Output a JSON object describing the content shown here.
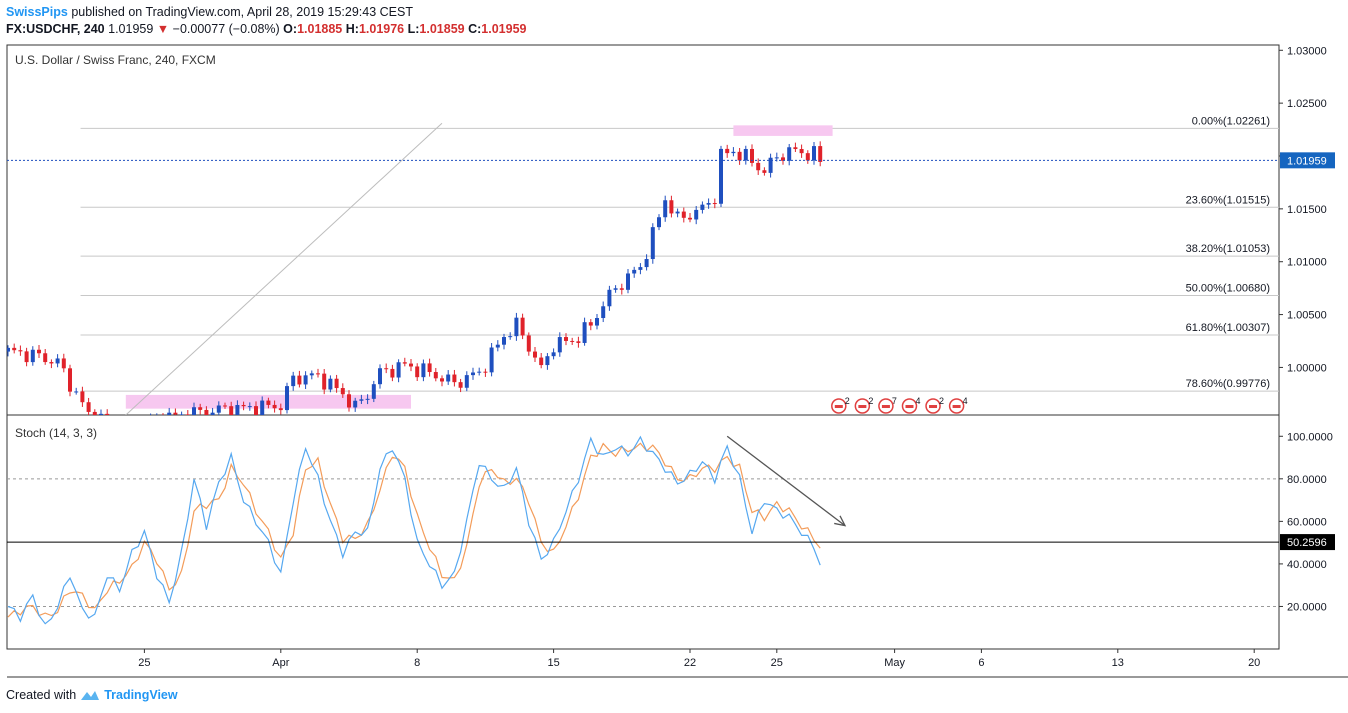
{
  "header": {
    "author": "SwissPips",
    "published_text": "published on TradingView.com, April 28, 2019 15:29:43 CEST",
    "symbol": "FX:USDCHF, 240",
    "last": "1.01959",
    "change": "−0.00077 (−0.08%)",
    "o_label": "O:",
    "o_value": "1.01885",
    "h_label": "H:",
    "h_value": "1.01976",
    "l_label": "L:",
    "l_value": "1.01859",
    "c_label": "C:",
    "c_value": "1.01959"
  },
  "footer": {
    "created_with": "Created with",
    "brand": "TradingView"
  },
  "colors": {
    "up": "#1f4fbf",
    "down": "#e0222a",
    "k_line": "#56a8f0",
    "d_line": "#f39c5a",
    "highlight": "#f7c8f0",
    "fib": "#c8c8c8",
    "label_bg": "#1565c0",
    "last_line": "#1f4fbf"
  },
  "chart_data": [
    {
      "type": "candlestick",
      "title": "U.S. Dollar / Swiss Franc, 240, FXCM",
      "ylim": [
        0.9955,
        1.0305
      ],
      "y_ticks": [
        "1.03000",
        "1.02500",
        "1.02000",
        "1.01500",
        "1.01000",
        "1.00500",
        "1.00000"
      ],
      "last_price": {
        "value": 1.01959,
        "label": "1.01959"
      },
      "fib_levels": [
        {
          "label": "0.00%(1.02261)",
          "value": 1.02261
        },
        {
          "label": "23.60%(1.01515)",
          "value": 1.01515
        },
        {
          "label": "38.20%(1.01053)",
          "value": 1.01053
        },
        {
          "label": "50.00%(1.00680)",
          "value": 1.0068
        },
        {
          "label": "61.80%(1.00307)",
          "value": 1.00307
        },
        {
          "label": "78.60%(0.99776)",
          "value": 0.99776
        }
      ],
      "x_ticks": [
        {
          "label": "25",
          "idx": 22
        },
        {
          "label": "Apr",
          "idx": 44
        },
        {
          "label": "8",
          "idx": 66
        },
        {
          "label": "15",
          "idx": 88
        },
        {
          "label": "22",
          "idx": 110
        },
        {
          "label": "25",
          "idx": 124
        },
        {
          "label": "May",
          "idx": 143
        },
        {
          "label": "6",
          "idx": 157
        },
        {
          "label": "13",
          "idx": 179
        },
        {
          "label": "20",
          "idx": 201
        }
      ],
      "waypoints": [
        [
          0,
          1.0015
        ],
        [
          4,
          1.0012
        ],
        [
          8,
          1.0005
        ],
        [
          11,
          0.9975
        ],
        [
          13,
          0.9955
        ],
        [
          18,
          0.9945
        ],
        [
          24,
          0.995
        ],
        [
          28,
          0.9955
        ],
        [
          34,
          0.996
        ],
        [
          40,
          0.9962
        ],
        [
          44,
          0.9964
        ],
        [
          46,
          0.999
        ],
        [
          50,
          0.9992
        ],
        [
          54,
          0.9975
        ],
        [
          56,
          0.9962
        ],
        [
          58,
          0.9975
        ],
        [
          60,
          0.9995
        ],
        [
          64,
          1.0002
        ],
        [
          68,
          0.9995
        ],
        [
          72,
          0.9985
        ],
        [
          76,
          0.9995
        ],
        [
          78,
          1.0012
        ],
        [
          80,
          1.003
        ],
        [
          82,
          1.004
        ],
        [
          84,
          1.002
        ],
        [
          86,
          0.9998
        ],
        [
          88,
          1.0022
        ],
        [
          91,
          1.0025
        ],
        [
          94,
          1.004
        ],
        [
          96,
          1.006
        ],
        [
          98,
          1.0075
        ],
        [
          100,
          1.0085
        ],
        [
          102,
          1.0095
        ],
        [
          104,
          1.0125
        ],
        [
          106,
          1.016
        ],
        [
          108,
          1.014
        ],
        [
          110,
          1.0145
        ],
        [
          112,
          1.015
        ],
        [
          114,
          1.0162
        ],
        [
          115,
          1.02
        ],
        [
          117,
          1.0205
        ],
        [
          120,
          1.0195
        ],
        [
          122,
          1.0185
        ],
        [
          124,
          1.02
        ],
        [
          127,
          1.0205
        ],
        [
          130,
          1.0201
        ],
        [
          131,
          1.01959
        ]
      ],
      "annotations": {
        "highlight_boxes": [
          {
            "idx_start": 19,
            "idx_end": 65,
            "y_top": 0.9974,
            "y_bottom": 0.9961
          },
          {
            "idx_start": 117,
            "idx_end": 133,
            "y_top": 1.0229,
            "y_bottom": 1.0219
          }
        ],
        "trend_line": {
          "idx_start": 19,
          "y_start": 0.9955,
          "idx_end": 70,
          "y_end": 1.0231
        },
        "event_markers": [
          "2",
          "2",
          "7",
          "4",
          "2",
          "4"
        ]
      }
    },
    {
      "type": "line",
      "title": "Stoch (14, 3, 3)",
      "ylim": [
        0,
        110
      ],
      "y_ticks": [
        "100.0000",
        "80.0000",
        "60.0000",
        "40.0000",
        "20.0000"
      ],
      "level_lines": [
        80,
        20
      ],
      "marker_line": {
        "value": 50.2596,
        "label": "50.2596"
      },
      "k_waypoints": [
        [
          0,
          20
        ],
        [
          2,
          15
        ],
        [
          4,
          25
        ],
        [
          6,
          10
        ],
        [
          8,
          20
        ],
        [
          10,
          35
        ],
        [
          12,
          18
        ],
        [
          14,
          15
        ],
        [
          16,
          35
        ],
        [
          18,
          28
        ],
        [
          20,
          45
        ],
        [
          22,
          55
        ],
        [
          24,
          35
        ],
        [
          26,
          22
        ],
        [
          28,
          45
        ],
        [
          30,
          80
        ],
        [
          32,
          58
        ],
        [
          34,
          78
        ],
        [
          36,
          90
        ],
        [
          38,
          70
        ],
        [
          40,
          60
        ],
        [
          42,
          50
        ],
        [
          44,
          35
        ],
        [
          46,
          70
        ],
        [
          48,
          95
        ],
        [
          50,
          80
        ],
        [
          52,
          60
        ],
        [
          54,
          45
        ],
        [
          56,
          55
        ],
        [
          58,
          55
        ],
        [
          60,
          85
        ],
        [
          62,
          95
        ],
        [
          64,
          80
        ],
        [
          66,
          50
        ],
        [
          68,
          40
        ],
        [
          70,
          30
        ],
        [
          72,
          35
        ],
        [
          74,
          60
        ],
        [
          76,
          88
        ],
        [
          78,
          80
        ],
        [
          80,
          75
        ],
        [
          82,
          85
        ],
        [
          84,
          60
        ],
        [
          86,
          42
        ],
        [
          88,
          50
        ],
        [
          90,
          65
        ],
        [
          92,
          80
        ],
        [
          94,
          98
        ],
        [
          96,
          90
        ],
        [
          98,
          95
        ],
        [
          100,
          92
        ],
        [
          102,
          98
        ],
        [
          104,
          92
        ],
        [
          106,
          85
        ],
        [
          108,
          78
        ],
        [
          110,
          82
        ],
        [
          112,
          88
        ],
        [
          114,
          80
        ],
        [
          116,
          95
        ],
        [
          118,
          80
        ],
        [
          120,
          55
        ],
        [
          122,
          70
        ],
        [
          124,
          65
        ],
        [
          126,
          62
        ],
        [
          128,
          55
        ],
        [
          130,
          48
        ],
        [
          131,
          40
        ]
      ],
      "d_waypoints": [
        [
          0,
          15
        ],
        [
          2,
          18
        ],
        [
          4,
          20
        ],
        [
          6,
          15
        ],
        [
          8,
          18
        ],
        [
          10,
          28
        ],
        [
          12,
          25
        ],
        [
          14,
          18
        ],
        [
          16,
          28
        ],
        [
          18,
          32
        ],
        [
          20,
          38
        ],
        [
          22,
          50
        ],
        [
          24,
          42
        ],
        [
          26,
          28
        ],
        [
          28,
          35
        ],
        [
          30,
          65
        ],
        [
          32,
          68
        ],
        [
          34,
          70
        ],
        [
          36,
          85
        ],
        [
          38,
          78
        ],
        [
          40,
          65
        ],
        [
          42,
          55
        ],
        [
          44,
          42
        ],
        [
          46,
          55
        ],
        [
          48,
          85
        ],
        [
          50,
          88
        ],
        [
          52,
          68
        ],
        [
          54,
          52
        ],
        [
          56,
          52
        ],
        [
          58,
          58
        ],
        [
          60,
          75
        ],
        [
          62,
          92
        ],
        [
          64,
          85
        ],
        [
          66,
          62
        ],
        [
          68,
          48
        ],
        [
          70,
          35
        ],
        [
          72,
          32
        ],
        [
          74,
          48
        ],
        [
          76,
          78
        ],
        [
          78,
          85
        ],
        [
          80,
          78
        ],
        [
          82,
          80
        ],
        [
          84,
          70
        ],
        [
          86,
          50
        ],
        [
          88,
          45
        ],
        [
          90,
          58
        ],
        [
          92,
          72
        ],
        [
          94,
          90
        ],
        [
          96,
          95
        ],
        [
          98,
          92
        ],
        [
          100,
          94
        ],
        [
          102,
          95
        ],
        [
          104,
          95
        ],
        [
          106,
          88
        ],
        [
          108,
          80
        ],
        [
          110,
          80
        ],
        [
          112,
          85
        ],
        [
          114,
          85
        ],
        [
          116,
          90
        ],
        [
          118,
          85
        ],
        [
          120,
          65
        ],
        [
          122,
          62
        ],
        [
          124,
          68
        ],
        [
          126,
          65
        ],
        [
          128,
          58
        ],
        [
          130,
          52
        ],
        [
          131,
          48
        ]
      ],
      "arrow": {
        "idx_start": 116,
        "y_start": 100,
        "idx_end": 135,
        "y_end": 58
      }
    }
  ]
}
